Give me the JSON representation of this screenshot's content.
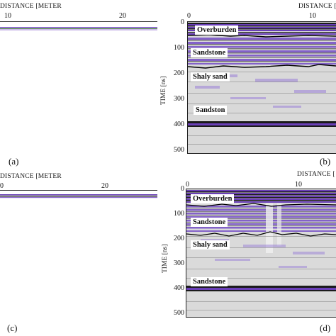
{
  "colors": {
    "purple": "#6a3fb8",
    "dark": "#222222",
    "gray": "#d8d8d8"
  },
  "panels": [
    {
      "id": "a",
      "label": "(a)",
      "axis_title": "DISTANCE [METER",
      "ticks": [
        "10",
        "20"
      ]
    },
    {
      "id": "b",
      "label": "(b)",
      "axis_title": "DISTANCE [",
      "ticks": [
        "0",
        "10"
      ],
      "ylabel": "TIME [ns]",
      "yticks": [
        "0",
        "100",
        "200",
        "300",
        "400",
        "500"
      ],
      "layers": [
        "Overburden",
        "Sandstone",
        "Shaly sand",
        "Sandston"
      ]
    },
    {
      "id": "c",
      "label": "(c)",
      "axis_title": "DISTANCE [METER",
      "ticks": [
        "0",
        "20"
      ]
    },
    {
      "id": "d",
      "label": "(d)",
      "axis_title": "DISTANCE [",
      "ticks": [
        "0",
        "10"
      ],
      "ylabel": "TIME [ns]",
      "yticks": [
        "0",
        "100",
        "200",
        "300",
        "400",
        "500"
      ],
      "layers": [
        "Overburden",
        "Sandstone",
        "Shaly sand",
        "Sandstone"
      ]
    }
  ]
}
